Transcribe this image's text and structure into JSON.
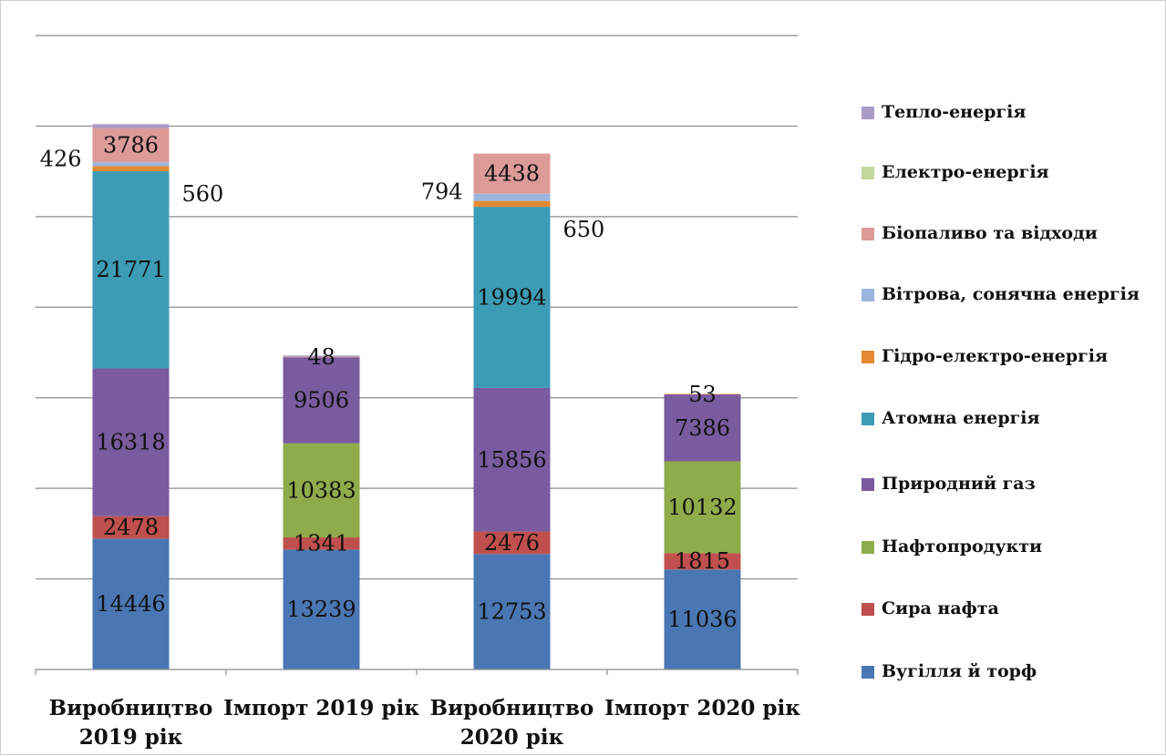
{
  "chart_data": {
    "type": "bar",
    "stacked": true,
    "categories": [
      [
        "Виробництво",
        "2019 рік"
      ],
      [
        "Імпорт 2019 рік"
      ],
      [
        "Виробництво",
        "2020 рік"
      ],
      [
        "Імпорт 2020 рік"
      ]
    ],
    "series": [
      {
        "name": "Вугілля й торф",
        "color": "#4a77b3",
        "values": [
          14446,
          13239,
          12753,
          11036
        ]
      },
      {
        "name": "Сира нафта",
        "color": "#c0504d",
        "values": [
          2478,
          1341,
          2476,
          1815
        ]
      },
      {
        "name": "Нафтопродукти",
        "color": "#8fac4a",
        "values": [
          0,
          10383,
          0,
          10132
        ]
      },
      {
        "name": "Природний газ",
        "color": "#7a5b9f",
        "values": [
          16318,
          9506,
          15856,
          7386
        ]
      },
      {
        "name": "Атомна енергія",
        "color": "#3d9cb5",
        "values": [
          21771,
          0,
          19994,
          0
        ]
      },
      {
        "name": "Гідро-електро-енергія",
        "color": "#e58a32",
        "values": [
          560,
          48,
          650,
          53
        ]
      },
      {
        "name": "Вітрова, сонячна енергія",
        "color": "#9bb5dd",
        "values": [
          426,
          0,
          794,
          0
        ]
      },
      {
        "name": "Біопаливо та відходи",
        "color": "#dc9a98",
        "values": [
          3786,
          0,
          4438,
          0
        ]
      },
      {
        "name": "Електро-енергія",
        "color": "#c3d79b",
        "values": [
          0,
          0,
          0,
          0
        ]
      },
      {
        "name": "Тепло-енергія",
        "color": "#a99cc7",
        "values": [
          420,
          150,
          0,
          0
        ]
      }
    ],
    "segment_labels": [
      {
        "category": 0,
        "series": 0,
        "text": "14446"
      },
      {
        "category": 0,
        "series": 1,
        "text": "2478"
      },
      {
        "category": 0,
        "series": 3,
        "text": "16318"
      },
      {
        "category": 0,
        "series": 4,
        "text": "21771"
      },
      {
        "category": 0,
        "series": 7,
        "text": "3786"
      },
      {
        "category": 1,
        "series": 0,
        "text": "13239"
      },
      {
        "category": 1,
        "series": 1,
        "text": "1341"
      },
      {
        "category": 1,
        "series": 2,
        "text": "10383"
      },
      {
        "category": 1,
        "series": 3,
        "text": "9506"
      },
      {
        "category": 1,
        "series": 5,
        "text": "48"
      },
      {
        "category": 2,
        "series": 0,
        "text": "12753"
      },
      {
        "category": 2,
        "series": 1,
        "text": "2476"
      },
      {
        "category": 2,
        "series": 3,
        "text": "15856"
      },
      {
        "category": 2,
        "series": 4,
        "text": "19994"
      },
      {
        "category": 2,
        "series": 7,
        "text": "4438"
      },
      {
        "category": 3,
        "series": 0,
        "text": "11036"
      },
      {
        "category": 3,
        "series": 1,
        "text": "1815"
      },
      {
        "category": 3,
        "series": 2,
        "text": "10132"
      },
      {
        "category": 3,
        "series": 3,
        "text": "7386"
      },
      {
        "category": 3,
        "series": 5,
        "text": "53"
      }
    ],
    "callout_labels": [
      {
        "category": 0,
        "series": 6,
        "side": "left",
        "text": "426"
      },
      {
        "category": 0,
        "series": 5,
        "side": "right",
        "text": "560"
      },
      {
        "category": 2,
        "series": 6,
        "side": "left",
        "text": "794"
      },
      {
        "category": 2,
        "series": 5,
        "side": "right",
        "text": "650"
      }
    ],
    "ylim": [
      0,
      70000
    ],
    "y_gridline_step": 10000,
    "y_tick_labels_shown": false,
    "grid": true,
    "legend_position": "right",
    "legend_order": "reverse",
    "title": "",
    "xlabel": "",
    "ylabel": ""
  }
}
